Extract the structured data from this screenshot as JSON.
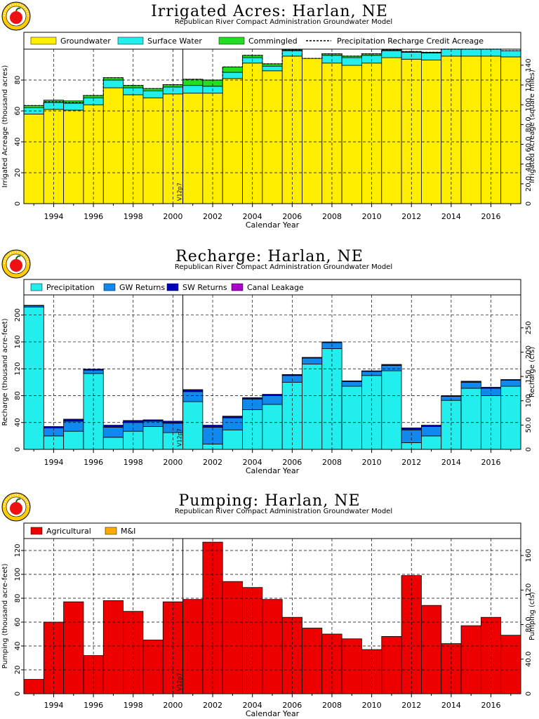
{
  "logo_text": "Republican River Compact",
  "colors": {
    "groundwater": "#ffee00",
    "surface_water": "#22eeee",
    "commingled": "#22dd22",
    "precipitation": "#22eeee",
    "gw_returns": "#1188ee",
    "sw_returns": "#0000bb",
    "canal_leakage": "#aa00cc",
    "agricultural": "#ee0000",
    "mi": "#ffaa00"
  },
  "version_label": "V12p7",
  "chart_data": [
    {
      "type": "bar",
      "title": "Irrigated Acres: Harlan, NE",
      "subtitle": "Republican River Compact Administration Groundwater Model",
      "xlabel": "Calendar Year",
      "ylabel": "Irrigated Acreage (thousand acres)",
      "y2label": "Irrigated Acreage (square miles)",
      "ylim": [
        0,
        100
      ],
      "y2lim": [
        0,
        156.25
      ],
      "xlim": [
        1992.5,
        2017.5
      ],
      "xticks": [
        1994,
        1996,
        1998,
        2000,
        2002,
        2004,
        2006,
        2008,
        2010,
        2012,
        2014,
        2016
      ],
      "yticks": [
        20,
        40,
        60,
        80
      ],
      "y2ticks": [
        20,
        40,
        60,
        80,
        100,
        120,
        140
      ],
      "y2ticklabels": [
        "20.0",
        "40.0",
        "60.0",
        "80.0",
        "100",
        "120",
        "140"
      ],
      "grid": true,
      "stacked": true,
      "categories": [
        1993,
        1994,
        1995,
        1996,
        1997,
        1998,
        1999,
        2000,
        2001,
        2002,
        2003,
        2004,
        2005,
        2006,
        2007,
        2008,
        2009,
        2010,
        2011,
        2012,
        2013,
        2014,
        2015,
        2016,
        2017
      ],
      "series": [
        {
          "name": "Groundwater",
          "values": [
            58,
            61,
            60.5,
            64,
            75,
            70.5,
            68.5,
            71,
            71.5,
            71.5,
            81,
            91,
            86,
            95.5,
            94,
            91,
            89.5,
            91,
            94.5,
            93.5,
            93,
            95.5,
            95.5,
            95.5,
            95
          ]
        },
        {
          "name": "Surface Water",
          "values": [
            4,
            4.5,
            4.5,
            4.5,
            5,
            4.5,
            4.5,
            4.5,
            5,
            4.5,
            4,
            3.5,
            3,
            3.5,
            0,
            5,
            5,
            5,
            4.5,
            4.5,
            4.5,
            4.5,
            4.5,
            4.5,
            4
          ]
        },
        {
          "name": "Commingled",
          "values": [
            1.5,
            1.5,
            1.5,
            1.5,
            1.5,
            1.5,
            1.5,
            1.5,
            4,
            4,
            3.5,
            1.5,
            1.5,
            0.5,
            0,
            1,
            1,
            1,
            0.5,
            0.5,
            0.5,
            0,
            0,
            0,
            0
          ]
        }
      ],
      "line_series": {
        "name": "Precipitation Recharge Credit Acreage",
        "values": [
          63.5,
          66,
          65.5,
          70,
          81.5,
          76.5,
          74.5,
          77,
          80.5,
          80,
          88.5,
          96,
          90.5,
          99.5,
          94,
          97,
          95.5,
          97,
          99.5,
          98.5,
          98,
          100,
          100,
          100,
          99
        ]
      }
    },
    {
      "type": "bar",
      "title": "Recharge: Harlan, NE",
      "subtitle": "Republican River Compact Administration Groundwater Model",
      "xlabel": "Calendar Year",
      "ylabel": "Recharge (thousand acre-feet)",
      "y2label": "Recharge (cfs)",
      "ylim": [
        0,
        230
      ],
      "y2lim": [
        0,
        317.7
      ],
      "xlim": [
        1992.5,
        2017.5
      ],
      "xticks": [
        1994,
        1996,
        1998,
        2000,
        2002,
        2004,
        2006,
        2008,
        2010,
        2012,
        2014,
        2016
      ],
      "yticks": [
        40,
        80,
        120,
        160,
        200
      ],
      "y2ticks": [
        50,
        100,
        150,
        200,
        250
      ],
      "y2ticklabels": [
        "50.0",
        "100",
        "150",
        "200",
        "250"
      ],
      "grid": true,
      "stacked": true,
      "categories": [
        1993,
        1994,
        1995,
        1996,
        1997,
        1998,
        1999,
        2000,
        2001,
        2002,
        2003,
        2004,
        2005,
        2006,
        2007,
        2008,
        2009,
        2010,
        2011,
        2012,
        2013,
        2014,
        2015,
        2016,
        2017
      ],
      "series": [
        {
          "name": "Precipitation",
          "values": [
            212,
            20,
            27,
            113,
            18,
            27,
            34,
            25,
            71,
            8,
            29,
            59,
            67,
            100,
            127,
            150,
            94,
            110,
            117,
            10,
            20,
            73,
            91,
            80,
            94
          ]
        },
        {
          "name": "GW Returns",
          "values": [
            2,
            12,
            15,
            5,
            15,
            13,
            8,
            14,
            15,
            25,
            18,
            16,
            13,
            10,
            9,
            9,
            7,
            6,
            8,
            19,
            14,
            6,
            9,
            11,
            9
          ]
        },
        {
          "name": "SW Returns",
          "values": [
            0.5,
            2,
            3,
            1.5,
            3,
            3,
            2,
            3,
            3,
            3,
            2.5,
            2,
            2,
            1.5,
            1,
            1,
            1,
            1,
            1.5,
            3,
            2,
            1,
            1.5,
            1.5,
            1
          ]
        },
        {
          "name": "Canal Leakage",
          "values": [
            0,
            0,
            0,
            0,
            0,
            0,
            0,
            0,
            0,
            0,
            0,
            0,
            0,
            0,
            0,
            0,
            0,
            0,
            0,
            0,
            0,
            0,
            0,
            0,
            0
          ]
        }
      ]
    },
    {
      "type": "bar",
      "title": "Pumping: Harlan, NE",
      "subtitle": "Republican River Compact Administration Groundwater Model",
      "xlabel": "Calendar Year",
      "ylabel": "Pumping (thousand acre-feet)",
      "y2label": "Pumping (cfs)",
      "ylim": [
        0,
        130
      ],
      "y2lim": [
        0,
        179.6
      ],
      "xlim": [
        1992.5,
        2017.5
      ],
      "xticks": [
        1994,
        1996,
        1998,
        2000,
        2002,
        2004,
        2006,
        2008,
        2010,
        2012,
        2014,
        2016
      ],
      "yticks": [
        20,
        40,
        60,
        80,
        100,
        120
      ],
      "y2ticks": [
        40,
        80,
        120,
        160
      ],
      "y2ticklabels": [
        "40.0",
        "80.0",
        "120",
        "160"
      ],
      "grid": true,
      "stacked": true,
      "categories": [
        1993,
        1994,
        1995,
        1996,
        1997,
        1998,
        1999,
        2000,
        2001,
        2002,
        2003,
        2004,
        2005,
        2006,
        2007,
        2008,
        2009,
        2010,
        2011,
        2012,
        2013,
        2014,
        2015,
        2016,
        2017
      ],
      "series": [
        {
          "name": "Agricultural",
          "values": [
            12,
            60,
            77,
            32,
            78,
            69,
            45,
            77,
            79,
            127,
            94,
            89,
            79,
            64,
            55,
            50,
            46,
            37,
            48,
            99,
            74,
            42,
            57,
            64,
            49
          ]
        },
        {
          "name": "M&I",
          "values": [
            0,
            0,
            0,
            0,
            0,
            0,
            0,
            0,
            0,
            0,
            0,
            0,
            0,
            0,
            0,
            0,
            0,
            0,
            0,
            0,
            0,
            0,
            0,
            0,
            0
          ]
        }
      ]
    }
  ]
}
